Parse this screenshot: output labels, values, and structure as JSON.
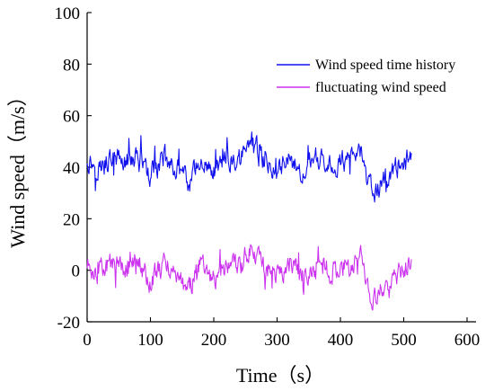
{
  "chart_data": {
    "type": "line",
    "xlabel": "Time（s）",
    "ylabel": "Wind speed（m/s）",
    "xlim": [
      0,
      600
    ],
    "ylim": [
      -20,
      100
    ],
    "x_ticks": [
      "0",
      "100",
      "200",
      "300",
      "400",
      "500",
      "600"
    ],
    "y_ticks": [
      "-20",
      "0",
      "20",
      "40",
      "60",
      "80",
      "100"
    ],
    "grid": false,
    "legend_position": "top-right",
    "time_step_s": 1,
    "series": [
      {
        "name": "Wind speed time history",
        "color": "#1010ee",
        "mean": 41,
        "x": [
          0,
          20,
          40,
          60,
          80,
          100,
          120,
          140,
          160,
          180,
          200,
          220,
          240,
          260,
          280,
          300,
          320,
          340,
          360,
          380,
          400,
          420,
          430,
          440,
          450,
          460,
          480,
          500,
          512
        ],
        "values": [
          43,
          40,
          44,
          42,
          45,
          36,
          44,
          40,
          33,
          44,
          38,
          43,
          42,
          50,
          42,
          40,
          44,
          38,
          43,
          41,
          42,
          44,
          50,
          35,
          30,
          32,
          38,
          42,
          44
        ]
      },
      {
        "name": "fluctuating wind speed",
        "color": "#cc33ee",
        "mean": 0,
        "x": [
          0,
          20,
          40,
          60,
          80,
          100,
          120,
          140,
          160,
          180,
          200,
          220,
          240,
          260,
          280,
          300,
          320,
          340,
          360,
          380,
          400,
          420,
          430,
          440,
          450,
          460,
          480,
          500,
          512
        ],
        "values": [
          2,
          -1,
          3,
          1,
          4,
          -5,
          3,
          -1,
          -8,
          3,
          -3,
          2,
          1,
          9,
          1,
          -1,
          3,
          -3,
          2,
          0,
          1,
          3,
          9,
          -6,
          -11,
          -9,
          -3,
          1,
          3
        ]
      }
    ]
  }
}
